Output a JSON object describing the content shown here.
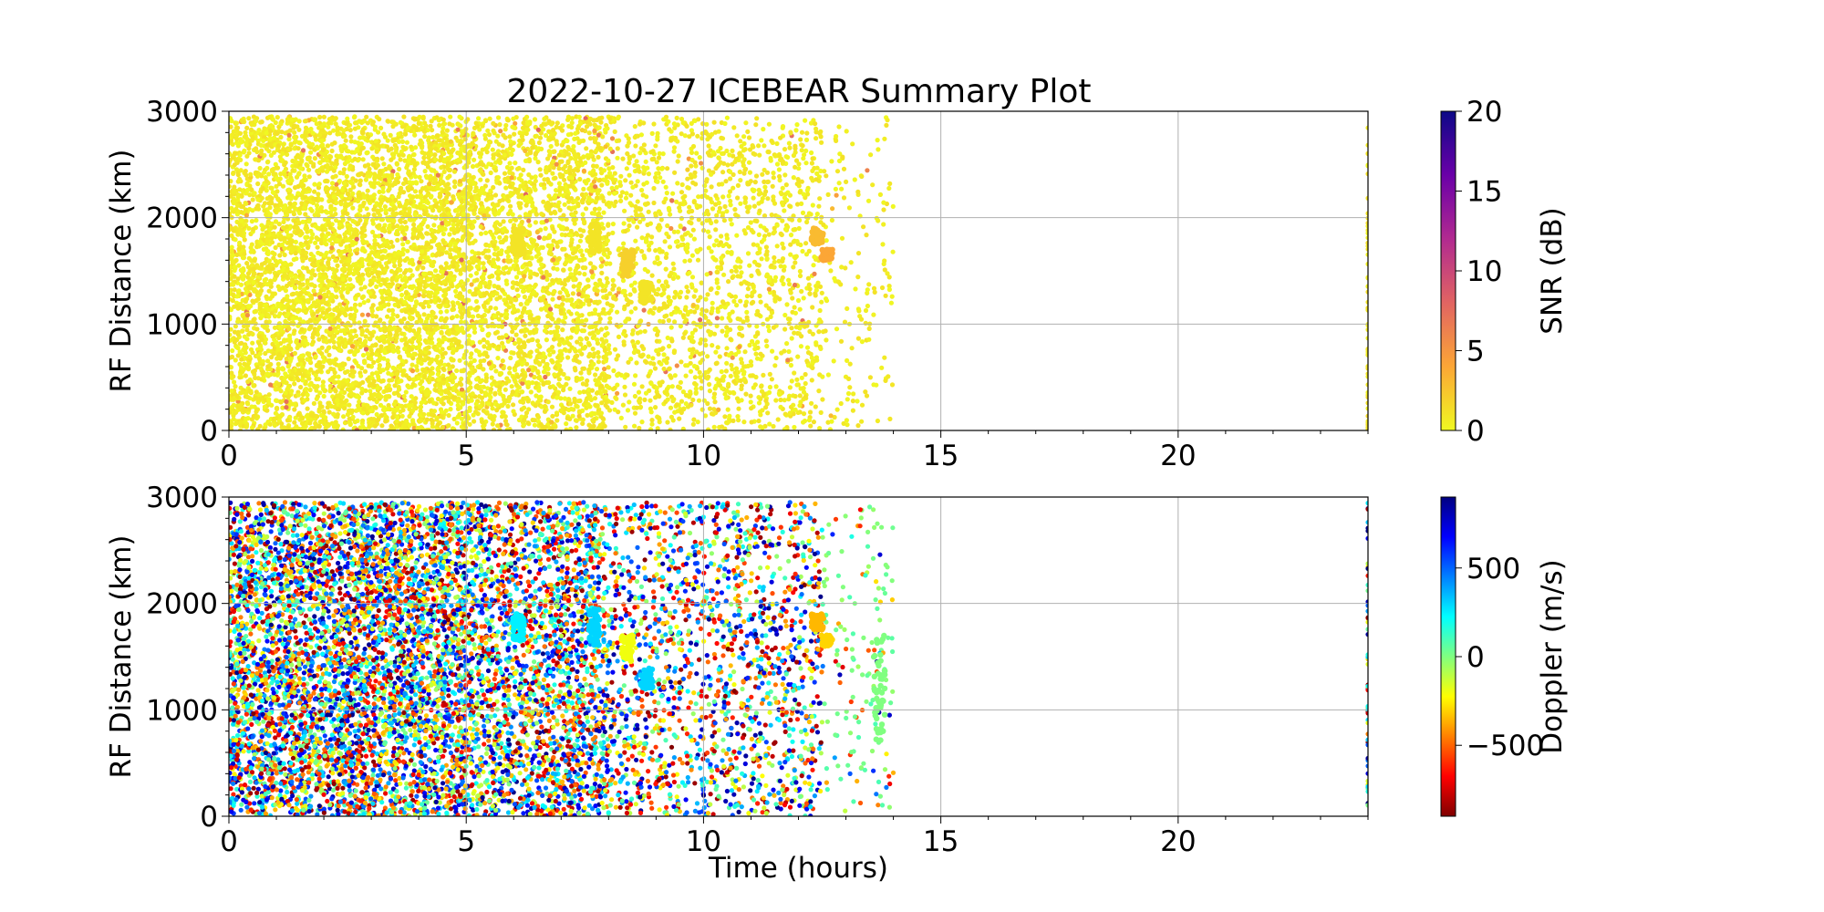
{
  "figure": {
    "title": "2022-10-27 ICEBEAR Summary Plot"
  },
  "chart_data": [
    {
      "type": "scatter",
      "name": "snr-panel",
      "title": "2022-10-27 ICEBEAR Summary Plot",
      "xlabel": "",
      "ylabel": "RF Distance (km)",
      "xlim": [
        0,
        24
      ],
      "ylim": [
        0,
        3000
      ],
      "xticks": [
        0,
        5,
        10,
        15,
        20
      ],
      "yticks": [
        0,
        1000,
        2000,
        3000
      ],
      "grid": true,
      "color_variable": "SNR (dB)",
      "colorbar": {
        "label": "SNR (dB)",
        "range": [
          0,
          20
        ],
        "ticks": [
          0,
          5,
          10,
          15,
          20
        ],
        "colormap": "plasma_r",
        "colors": [
          "#f0f921",
          "#fca636",
          "#e16462",
          "#b12a90",
          "#6a00a8",
          "#0d0887"
        ]
      },
      "data_extent": {
        "time_hours": [
          0,
          14
        ],
        "rf_distance_km": [
          0,
          2950
        ],
        "late_points_time_hours": 24
      },
      "features": [
        {
          "time_hours": 6.1,
          "rf_distance_km": [
            1650,
            1900
          ],
          "value": 1
        },
        {
          "time_hours": 7.7,
          "rf_distance_km": [
            1650,
            1950
          ],
          "value": 1
        },
        {
          "time_hours": 8.4,
          "rf_distance_km": [
            1450,
            1700
          ],
          "value": 2
        },
        {
          "time_hours": 8.8,
          "rf_distance_km": [
            1200,
            1400
          ],
          "value": 1
        },
        {
          "time_hours": 12.4,
          "rf_distance_km": [
            1750,
            1900
          ],
          "value": 3
        },
        {
          "time_hours": 12.6,
          "rf_distance_km": [
            1600,
            1700
          ],
          "value": 4
        }
      ]
    },
    {
      "type": "scatter",
      "name": "doppler-panel",
      "title": "",
      "xlabel": "Time (hours)",
      "ylabel": "RF Distance (km)",
      "xlim": [
        0,
        24
      ],
      "ylim": [
        0,
        3000
      ],
      "xticks": [
        0,
        5,
        10,
        15,
        20
      ],
      "yticks": [
        0,
        1000,
        2000,
        3000
      ],
      "grid": true,
      "color_variable": "Doppler (m/s)",
      "colorbar": {
        "label": "Doppler (m/s)",
        "range": [
          -900,
          900
        ],
        "ticks": [
          -500,
          0,
          500
        ],
        "tick_labels": [
          "−500",
          "0",
          "500"
        ],
        "colormap": "jet_r",
        "colors": [
          "#800000",
          "#ff0000",
          "#ff8000",
          "#ffff00",
          "#80ff80",
          "#00ffff",
          "#0080ff",
          "#0000ff",
          "#000080"
        ]
      },
      "data_extent": {
        "time_hours": [
          0,
          14
        ],
        "rf_distance_km": [
          0,
          2950
        ],
        "late_points_time_hours": 24
      },
      "features": [
        {
          "time_hours": 6.1,
          "rf_distance_km": [
            1650,
            1900
          ],
          "value": 250
        },
        {
          "time_hours": 7.7,
          "rf_distance_km": [
            1600,
            1950
          ],
          "value": 300
        },
        {
          "time_hours": 8.4,
          "rf_distance_km": [
            1450,
            1700
          ],
          "value": -200
        },
        {
          "time_hours": 8.8,
          "rf_distance_km": [
            1200,
            1400
          ],
          "value": 300
        },
        {
          "time_hours": 12.4,
          "rf_distance_km": [
            1750,
            1900
          ],
          "value": -350
        },
        {
          "time_hours": 12.6,
          "rf_distance_km": [
            1600,
            1700
          ],
          "value": -300
        },
        {
          "time_hours": 13.7,
          "rf_distance_km": [
            700,
            1700
          ],
          "value": 0
        }
      ]
    }
  ]
}
